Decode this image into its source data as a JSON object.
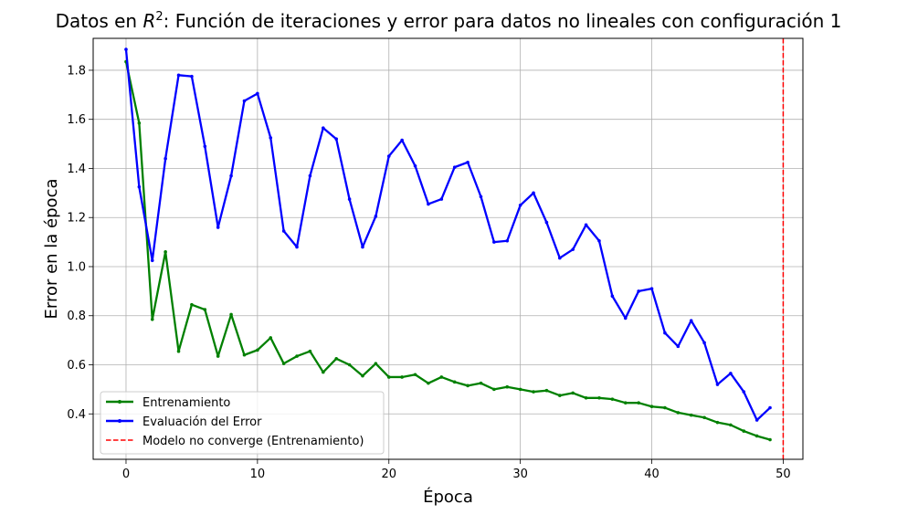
{
  "chart_data": {
    "type": "line",
    "title_prefix": "Datos en ",
    "title_math_base": "R",
    "title_math_sup": "2",
    "title_suffix": ": Función de iteraciones y error para datos no lineales con configuración 1",
    "xlabel": "Época",
    "ylabel": "Error en la época",
    "xlim": [
      -2.5,
      51.5
    ],
    "ylim": [
      0.215,
      1.93
    ],
    "xticks": [
      0,
      10,
      20,
      30,
      40,
      50
    ],
    "yticks": [
      0.4,
      0.6,
      0.8,
      1.0,
      1.2,
      1.4,
      1.6,
      1.8
    ],
    "grid": true,
    "legend_position": "lower-left",
    "x": [
      0,
      1,
      2,
      3,
      4,
      5,
      6,
      7,
      8,
      9,
      10,
      11,
      12,
      13,
      14,
      15,
      16,
      17,
      18,
      19,
      20,
      21,
      22,
      23,
      24,
      25,
      26,
      27,
      28,
      29,
      30,
      31,
      32,
      33,
      34,
      35,
      36,
      37,
      38,
      39,
      40,
      41,
      42,
      43,
      44,
      45,
      46,
      47,
      48,
      49
    ],
    "series": [
      {
        "name": "Entrenamiento",
        "color": "#008000",
        "values": [
          1.835,
          1.585,
          0.785,
          1.06,
          0.655,
          0.845,
          0.825,
          0.635,
          0.805,
          0.64,
          0.66,
          0.71,
          0.605,
          0.635,
          0.655,
          0.57,
          0.625,
          0.6,
          0.555,
          0.605,
          0.55,
          0.55,
          0.56,
          0.525,
          0.55,
          0.53,
          0.515,
          0.525,
          0.5,
          0.51,
          0.5,
          0.49,
          0.495,
          0.475,
          0.485,
          0.465,
          0.465,
          0.46,
          0.445,
          0.445,
          0.43,
          0.425,
          0.405,
          0.395,
          0.385,
          0.365,
          0.355,
          0.33,
          0.31,
          0.295
        ]
      },
      {
        "name": "Evaluación del Error",
        "color": "#0000ff",
        "values": [
          1.885,
          1.325,
          1.025,
          1.44,
          1.78,
          1.775,
          1.49,
          1.16,
          1.37,
          1.675,
          1.705,
          1.525,
          1.145,
          1.08,
          1.37,
          1.565,
          1.52,
          1.275,
          1.08,
          1.205,
          1.45,
          1.515,
          1.41,
          1.255,
          1.275,
          1.405,
          1.425,
          1.285,
          1.1,
          1.105,
          1.25,
          1.3,
          1.18,
          1.035,
          1.07,
          1.17,
          1.105,
          0.88,
          0.79,
          0.9,
          0.91,
          0.73,
          0.675,
          0.78,
          0.69,
          0.52,
          0.565,
          0.49,
          0.375,
          0.425
        ]
      }
    ],
    "reference_line": {
      "x": 50,
      "name": "Modelo no converge (Entrenamiento)",
      "color": "#ff0000",
      "style": "dashed"
    }
  }
}
